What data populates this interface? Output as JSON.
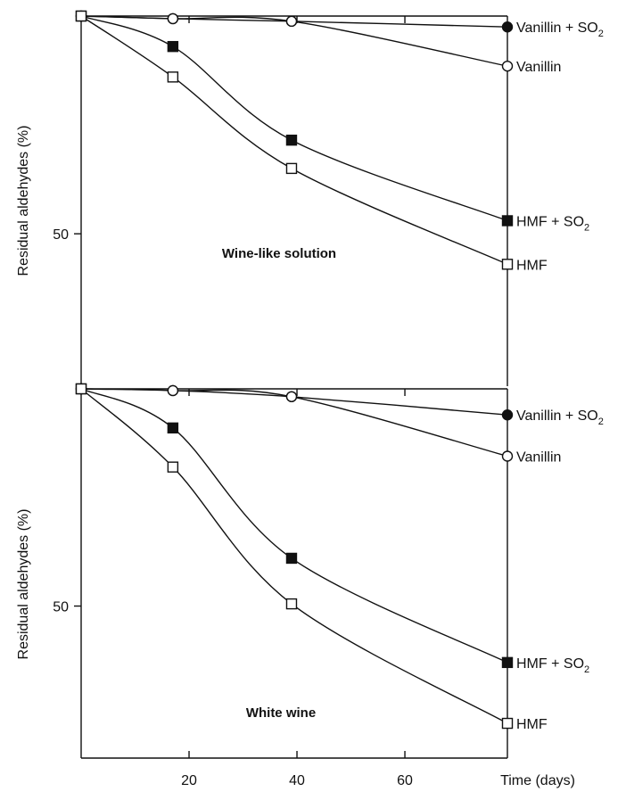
{
  "chart_data": [
    {
      "type": "line",
      "title": "Wine-like solution",
      "ylabel": "Residual aldehydes (%)",
      "xlabel": "Time (days)",
      "xlim": [
        0,
        79
      ],
      "ylim": [
        15,
        100
      ],
      "yticks": [
        {
          "value": 50,
          "label": "50"
        }
      ],
      "xticks": [
        {
          "value": 20,
          "label": "20"
        },
        {
          "value": 40,
          "label": "40"
        },
        {
          "value": 60,
          "label": "60"
        }
      ],
      "series": [
        {
          "name": "Vanillin + SO",
          "sub": "2",
          "marker": "filled-circle",
          "x": [
            0,
            17,
            39,
            79
          ],
          "y": [
            100,
            99.4,
            98.8,
            97.5
          ]
        },
        {
          "name": "Vanillin",
          "sub": "",
          "marker": "open-circle",
          "x": [
            0,
            17,
            39,
            79
          ],
          "y": [
            100,
            99.4,
            98.8,
            88.5
          ]
        },
        {
          "name": "HMF + SO",
          "sub": "2",
          "marker": "filled-square",
          "x": [
            0,
            17,
            39,
            79
          ],
          "y": [
            100,
            93,
            71.5,
            53
          ]
        },
        {
          "name": "HMF",
          "sub": "",
          "marker": "open-square",
          "x": [
            0,
            17,
            39,
            79
          ],
          "y": [
            100,
            86,
            65,
            43
          ]
        }
      ]
    },
    {
      "type": "line",
      "title": "White wine",
      "ylabel": "Residual aldehydes (%)",
      "xlabel": "Time (days)",
      "xlim": [
        0,
        79
      ],
      "ylim": [
        15,
        100
      ],
      "yticks": [
        {
          "value": 50,
          "label": "50"
        }
      ],
      "xticks": [
        {
          "value": 20,
          "label": "20"
        },
        {
          "value": 40,
          "label": "40"
        },
        {
          "value": 60,
          "label": "60"
        }
      ],
      "series": [
        {
          "name": "Vanillin + SO",
          "sub": "2",
          "marker": "filled-circle",
          "x": [
            0,
            17,
            39,
            79
          ],
          "y": [
            100,
            99.6,
            98.2,
            94
          ]
        },
        {
          "name": "Vanillin",
          "sub": "",
          "marker": "open-circle",
          "x": [
            0,
            17,
            39,
            79
          ],
          "y": [
            100,
            99.6,
            98.2,
            84.5
          ]
        },
        {
          "name": "HMF + SO",
          "sub": "2",
          "marker": "filled-square",
          "x": [
            0,
            17,
            39,
            79
          ],
          "y": [
            100,
            91,
            61,
            37
          ]
        },
        {
          "name": "HMF",
          "sub": "",
          "marker": "open-square",
          "x": [
            0,
            17,
            39,
            79
          ],
          "y": [
            100,
            82,
            50.5,
            23
          ]
        }
      ]
    }
  ]
}
